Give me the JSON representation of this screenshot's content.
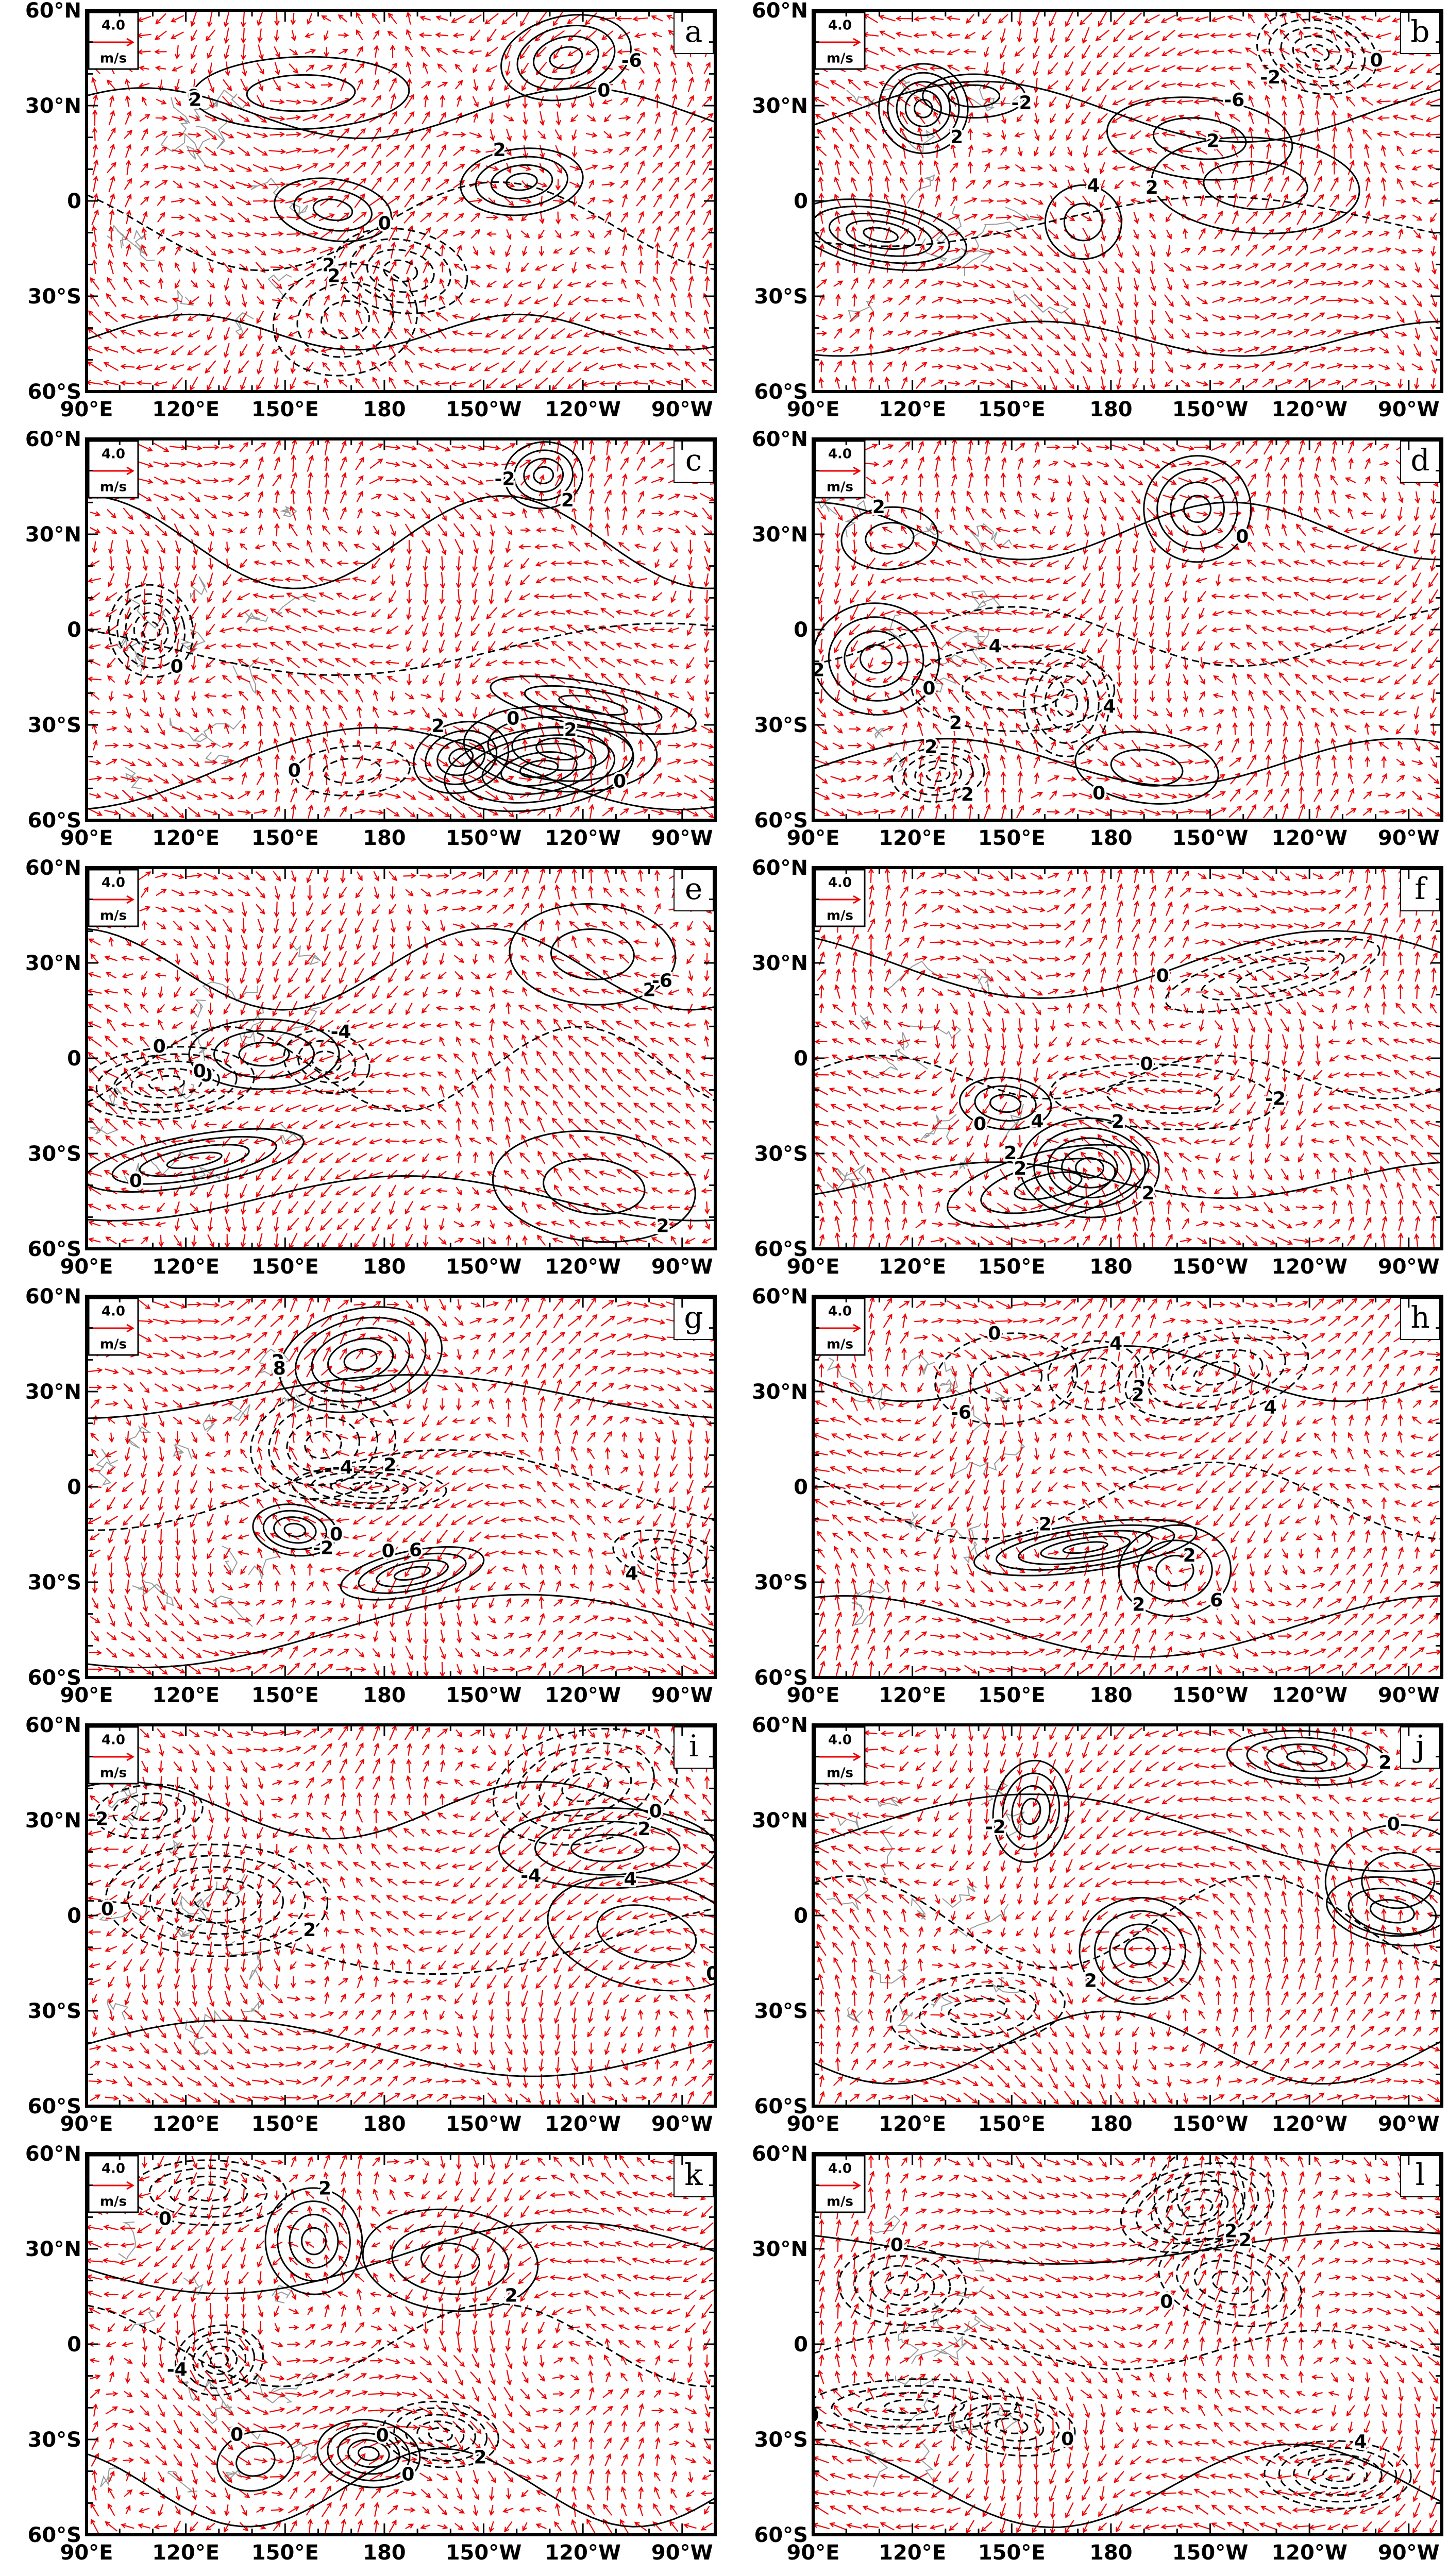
{
  "figure": {
    "x_ticks": [
      "90°E",
      "120°E",
      "150°E",
      "180",
      "150°W",
      "120°W",
      "90°W"
    ],
    "y_ticks": [
      "60°N",
      "30°N",
      "0",
      "30°S",
      "60°S"
    ],
    "reference_vector": {
      "value": "4.0",
      "unit": "m/s"
    },
    "panels": [
      {
        "label": "a",
        "contour_labels": [
          "-6",
          "0",
          "2",
          "0",
          "2",
          "2",
          "0",
          "2"
        ]
      },
      {
        "label": "b",
        "contour_labels": [
          "0",
          "2",
          "-6",
          "-2",
          "0",
          "4",
          "2",
          "-2",
          "2"
        ]
      },
      {
        "label": "c",
        "contour_labels": [
          "2",
          "0",
          "2",
          "0",
          "0",
          "2",
          "0",
          "-2"
        ]
      },
      {
        "label": "d",
        "contour_labels": [
          "0",
          "2",
          "2",
          "4",
          "0",
          "2",
          "0",
          "-2",
          "4",
          "2"
        ]
      },
      {
        "label": "e",
        "contour_labels": [
          "2",
          "0",
          "0",
          "2",
          "0",
          "-4",
          "-6",
          "0"
        ]
      },
      {
        "label": "f",
        "contour_labels": [
          "2",
          "0",
          "2",
          "-2",
          "0",
          "2",
          "4",
          "2",
          "0"
        ]
      },
      {
        "label": "g",
        "contour_labels": [
          "0",
          "2",
          "0",
          "2",
          "4",
          "-4",
          "-2",
          "8",
          "6"
        ]
      },
      {
        "label": "h",
        "contour_labels": [
          "2",
          "2",
          "0",
          "2",
          "2",
          "4",
          "6",
          "-6",
          "2",
          "4"
        ]
      },
      {
        "label": "i",
        "contour_labels": [
          "0",
          "0",
          "0",
          "2",
          "-2",
          "4",
          "2",
          "-4"
        ]
      },
      {
        "label": "j",
        "contour_labels": [
          "2",
          "2",
          "0",
          "2",
          "-2"
        ]
      },
      {
        "label": "k",
        "contour_labels": [
          "2",
          "-4",
          "0",
          "0",
          "0",
          "2",
          "2",
          "0"
        ]
      },
      {
        "label": "l",
        "contour_labels": [
          "2",
          "0",
          "4",
          "2",
          "0",
          "0",
          "0"
        ]
      }
    ]
  }
}
